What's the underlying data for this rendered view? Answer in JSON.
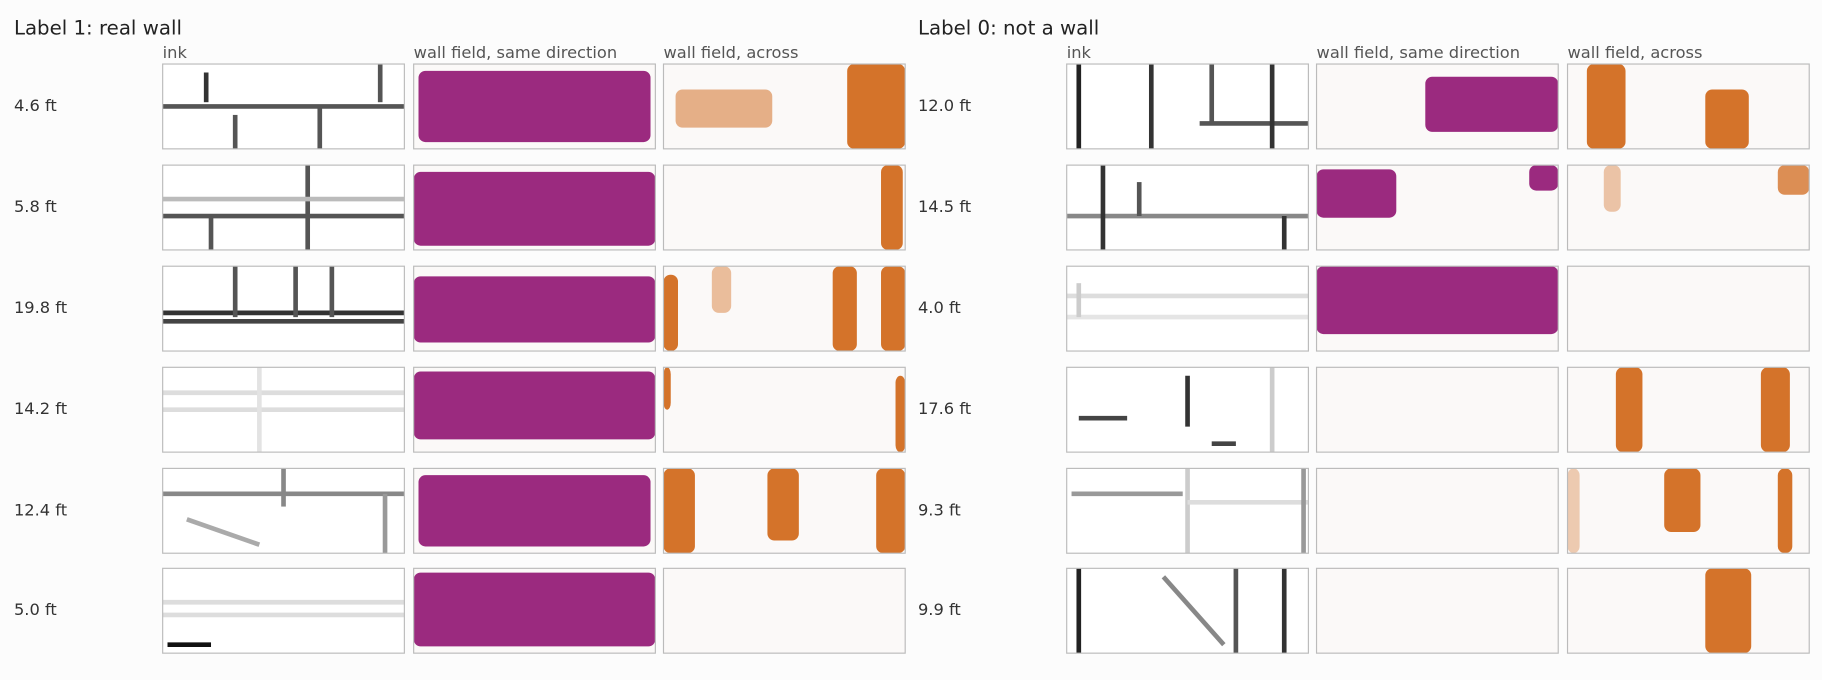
{
  "panels": [
    {
      "title": "Label 1: real wall",
      "columns": [
        "ink",
        "wall field, same direction",
        "wall field, across"
      ],
      "rows": [
        "4.6 ft",
        "5.8 ft",
        "19.8 ft",
        "14.2 ft",
        "12.4 ft",
        "5.0 ft"
      ]
    },
    {
      "title": "Label 0: not a wall",
      "columns": [
        "ink",
        "wall field, same direction",
        "wall field, across"
      ],
      "rows": [
        "12.0 ft",
        "14.5 ft",
        "4.0 ft",
        "17.6 ft",
        "9.3 ft",
        "9.9 ft"
      ]
    }
  ]
}
